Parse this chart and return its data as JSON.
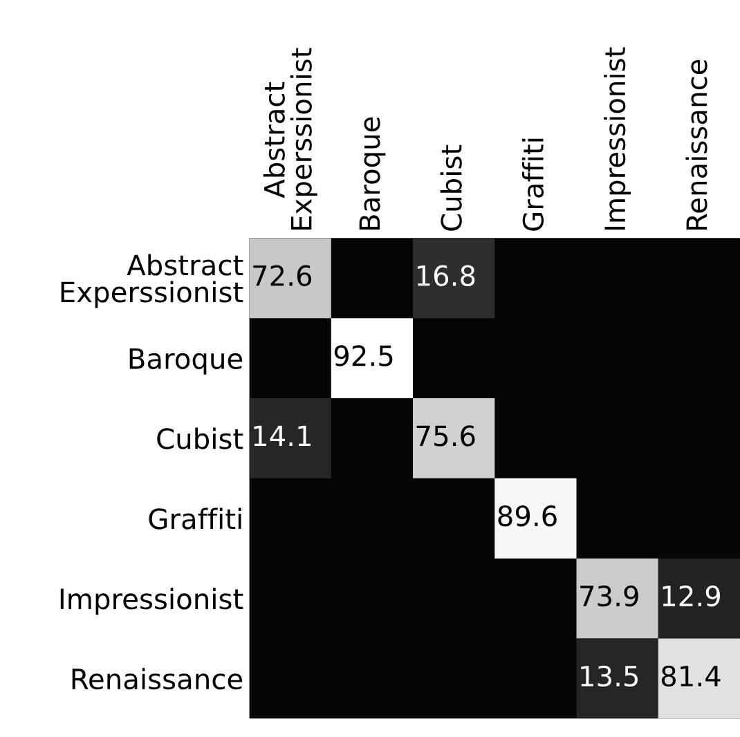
{
  "chart_data": {
    "type": "heatmap",
    "categories": [
      "Abstract\nExperssionist",
      "Baroque",
      "Cubist",
      "Graffiti",
      "Impressionist",
      "Renaissance"
    ],
    "y_categories": [
      "Abstract\nExperssionist",
      "Baroque",
      "Cubist",
      "Graffiti",
      "Impressionist",
      "Renaissance"
    ],
    "cells": [
      [
        72.6,
        null,
        16.8,
        null,
        null,
        null
      ],
      [
        null,
        92.5,
        null,
        null,
        null,
        null
      ],
      [
        14.1,
        null,
        75.6,
        null,
        null,
        null
      ],
      [
        null,
        null,
        null,
        89.6,
        null,
        null
      ],
      [
        null,
        null,
        null,
        null,
        73.9,
        12.9
      ],
      [
        null,
        null,
        null,
        null,
        13.5,
        81.4
      ]
    ],
    "data_labels": true
  }
}
